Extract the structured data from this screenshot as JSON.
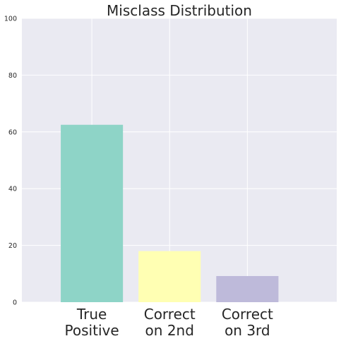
{
  "chart_data": {
    "type": "bar",
    "title": "Misclass Distribution",
    "xlabel": "",
    "ylabel": "",
    "categories": [
      "True\nPositive",
      "Correct\non 2nd",
      "Correct\non 3rd"
    ],
    "values": [
      62.5,
      18.0,
      9.2
    ],
    "colors": [
      "#8ed4c7",
      "#ffffb3",
      "#bebada"
    ],
    "ylim": [
      0,
      100
    ],
    "yticks": [
      0,
      20,
      40,
      60,
      80,
      100
    ],
    "grid": true,
    "legend": "none",
    "background": "#eaeaf2"
  }
}
